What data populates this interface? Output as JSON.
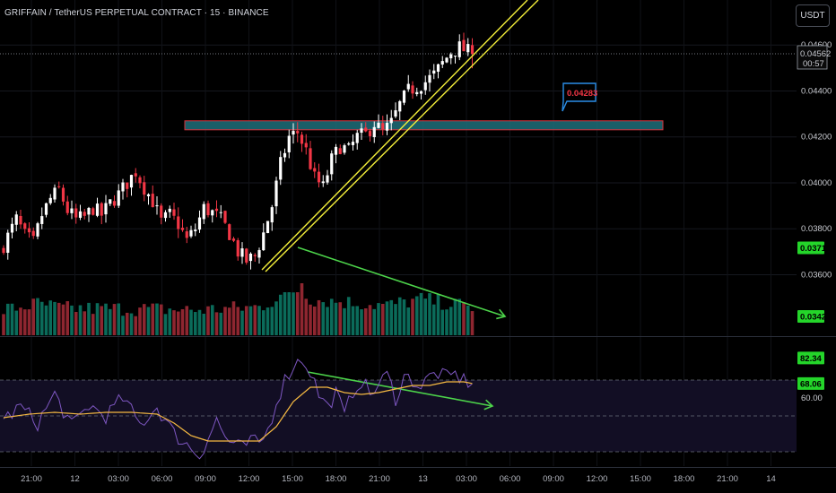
{
  "header": {
    "title": "GRIFFAIN / TetherUS PERPETUAL CONTRACT · 15 · BINANCE",
    "currency_button": "USDT"
  },
  "colors": {
    "up": "#ffffff",
    "down": "#f23645",
    "volume_up": "#0b6b5a",
    "volume_down": "#8e2630",
    "zone_fill": "#1e6f7a",
    "zone_border": "#d9323c",
    "trendline": "#f5f03a",
    "arrow": "#4cd34a",
    "rsi": "#7e57c2",
    "rsi_ma": "#f5b942",
    "green_tag": "#24d52a",
    "callout": "#2a8ee8",
    "callout_text": "#f23645"
  },
  "chart_data": [
    {
      "type": "candlestick",
      "title": "",
      "ylim": [
        0.0343,
        0.0464
      ],
      "y_ticks": [
        "0.04600",
        "0.04400",
        "0.04200",
        "0.04000",
        "0.03800",
        "0.03600"
      ],
      "x_ticks": [
        "21:00",
        "12",
        "03:00",
        "06:00",
        "09:00",
        "12:00",
        "15:00",
        "18:00",
        "21:00",
        "13",
        "03:00",
        "06:00",
        "09:00",
        "12:00",
        "15:00",
        "18:00",
        "21:00",
        "14"
      ],
      "last_price": "0.04562",
      "countdown": "00:57",
      "price_tags": [
        "0.03717",
        "0.03422"
      ],
      "zone": {
        "from": 0.04255,
        "to": 0.0427
      },
      "zone_label": "0.04283",
      "close_path": [
        [
          0,
          0.0373
        ],
        [
          3,
          0.0384
        ],
        [
          5,
          0.0377
        ],
        [
          7,
          0.0374
        ],
        [
          9,
          0.0386
        ],
        [
          11,
          0.0393
        ],
        [
          13,
          0.0397
        ],
        [
          15,
          0.0388
        ],
        [
          17,
          0.0384
        ],
        [
          19,
          0.0385
        ],
        [
          21,
          0.0389
        ],
        [
          23,
          0.0386
        ],
        [
          25,
          0.0391
        ],
        [
          27,
          0.0395
        ],
        [
          29,
          0.04
        ],
        [
          31,
          0.0405
        ],
        [
          33,
          0.0398
        ],
        [
          35,
          0.0392
        ],
        [
          37,
          0.0383
        ],
        [
          39,
          0.0386
        ],
        [
          41,
          0.0382
        ],
        [
          43,
          0.0375
        ],
        [
          45,
          0.038
        ],
        [
          47,
          0.0389
        ],
        [
          49,
          0.0387
        ],
        [
          51,
          0.0384
        ],
        [
          53,
          0.0378
        ],
        [
          55,
          0.037
        ],
        [
          57,
          0.0366
        ],
        [
          59,
          0.0368
        ],
        [
          61,
          0.0378
        ],
        [
          63,
          0.039
        ],
        [
          65,
          0.0408
        ],
        [
          67,
          0.042
        ],
        [
          69,
          0.0422
        ],
        [
          71,
          0.0414
        ],
        [
          73,
          0.0402
        ],
        [
          75,
          0.0398
        ],
        [
          77,
          0.041
        ],
        [
          79,
          0.0416
        ],
        [
          81,
          0.0414
        ],
        [
          83,
          0.042
        ],
        [
          85,
          0.0421
        ],
        [
          87,
          0.0426
        ],
        [
          89,
          0.0422
        ],
        [
          91,
          0.0426
        ],
        [
          93,
          0.0434
        ],
        [
          95,
          0.044
        ],
        [
          97,
          0.0442
        ],
        [
          99,
          0.0444
        ],
        [
          101,
          0.0447
        ],
        [
          103,
          0.0452
        ],
        [
          105,
          0.0457
        ],
        [
          107,
          0.0459
        ],
        [
          109,
          0.0457
        ],
        [
          110,
          0.04562
        ]
      ],
      "volume_peaks": [
        [
          0,
          0.25
        ],
        [
          8,
          0.45
        ],
        [
          14,
          0.3
        ],
        [
          30,
          0.3
        ],
        [
          45,
          0.25
        ],
        [
          60,
          0.35
        ],
        [
          70,
          1.0
        ],
        [
          72,
          0.6
        ],
        [
          90,
          0.4
        ],
        [
          98,
          0.6
        ],
        [
          105,
          0.45
        ],
        [
          110,
          0.35
        ]
      ]
    },
    {
      "type": "line",
      "title": "",
      "name": "",
      "ylim": [
        22,
        88
      ],
      "y_ticks": [
        "60.00"
      ],
      "tags": [
        "82.34",
        "68.06"
      ],
      "levels": [
        70,
        50,
        30
      ],
      "path": [
        [
          0,
          48
        ],
        [
          4,
          55
        ],
        [
          8,
          46
        ],
        [
          12,
          62
        ],
        [
          16,
          44
        ],
        [
          20,
          56
        ],
        [
          24,
          50
        ],
        [
          28,
          60
        ],
        [
          32,
          45
        ],
        [
          36,
          55
        ],
        [
          40,
          40
        ],
        [
          44,
          32
        ],
        [
          46,
          28
        ],
        [
          48,
          38
        ],
        [
          50,
          48
        ],
        [
          52,
          38
        ],
        [
          54,
          34
        ],
        [
          56,
          32
        ],
        [
          58,
          36
        ],
        [
          60,
          34
        ],
        [
          62,
          42
        ],
        [
          64,
          58
        ],
        [
          66,
          70
        ],
        [
          68,
          78
        ],
        [
          70,
          82
        ],
        [
          72,
          75
        ],
        [
          74,
          62
        ],
        [
          76,
          55
        ],
        [
          78,
          63
        ],
        [
          80,
          50
        ],
        [
          82,
          64
        ],
        [
          84,
          70
        ],
        [
          86,
          62
        ],
        [
          88,
          67
        ],
        [
          90,
          73
        ],
        [
          92,
          60
        ],
        [
          94,
          72
        ],
        [
          96,
          70
        ],
        [
          98,
          66
        ],
        [
          100,
          72
        ],
        [
          102,
          74
        ],
        [
          104,
          71
        ],
        [
          106,
          73
        ],
        [
          108,
          70
        ],
        [
          110,
          68
        ]
      ],
      "ma_path": [
        [
          0,
          49
        ],
        [
          6,
          51
        ],
        [
          12,
          52
        ],
        [
          18,
          51
        ],
        [
          24,
          52
        ],
        [
          30,
          52
        ],
        [
          36,
          51
        ],
        [
          40,
          46
        ],
        [
          44,
          39
        ],
        [
          48,
          36
        ],
        [
          52,
          36
        ],
        [
          56,
          36
        ],
        [
          60,
          36
        ],
        [
          64,
          44
        ],
        [
          68,
          58
        ],
        [
          72,
          66
        ],
        [
          76,
          66
        ],
        [
          80,
          63
        ],
        [
          84,
          62
        ],
        [
          88,
          63
        ],
        [
          92,
          65
        ],
        [
          96,
          67
        ],
        [
          100,
          67
        ],
        [
          104,
          69
        ],
        [
          108,
          69
        ],
        [
          110,
          68.06
        ]
      ]
    }
  ]
}
